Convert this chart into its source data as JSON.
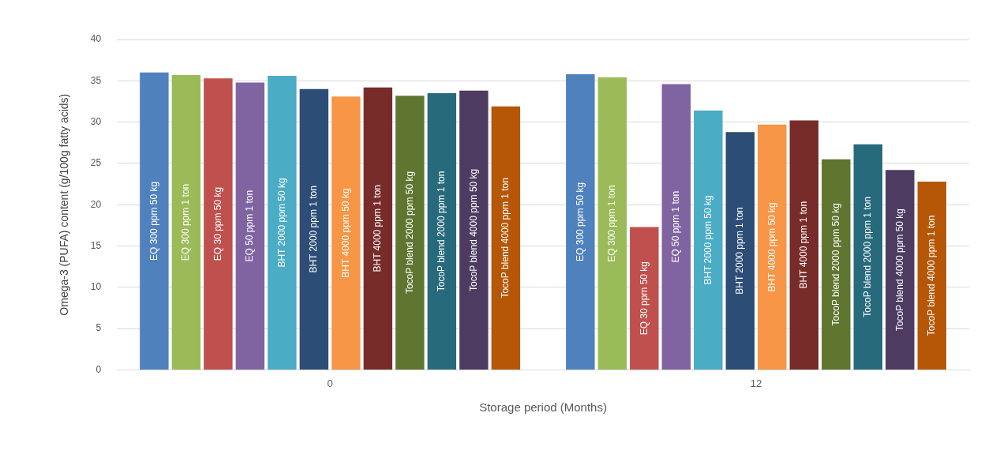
{
  "chart_data": {
    "type": "bar",
    "categories": [
      "0",
      "12"
    ],
    "xlabel": "Storage period (Months)",
    "ylabel": "Omega-3 (PUFA) content (g/100g fatty acids)",
    "ylim": [
      0,
      40
    ],
    "yticks": [
      0,
      5,
      10,
      15,
      20,
      25,
      30,
      35,
      40
    ],
    "grid": "y",
    "legend": false,
    "series": [
      {
        "name": "EQ 300 ppm 50 kg",
        "color": "#4f81bd",
        "values": [
          36.0,
          35.8
        ]
      },
      {
        "name": "EQ 300 ppm 1 ton",
        "color": "#9bbb59",
        "values": [
          35.7,
          35.4
        ]
      },
      {
        "name": "EQ 30 ppm 50 kg",
        "color": "#c0504d",
        "values": [
          35.3,
          17.3
        ]
      },
      {
        "name": "EQ 50 ppm 1 ton",
        "color": "#8064a2",
        "values": [
          34.8,
          34.6
        ]
      },
      {
        "name": "BHT 2000 ppm 50 kg",
        "color": "#4bacc6",
        "values": [
          35.6,
          31.4
        ]
      },
      {
        "name": "BHT 2000 ppm 1 ton",
        "color": "#2c4d75",
        "values": [
          34.0,
          28.8
        ]
      },
      {
        "name": "BHT 4000 ppm 50 kg",
        "color": "#f79646",
        "values": [
          33.1,
          29.7
        ]
      },
      {
        "name": "BHT 4000 ppm 1 ton",
        "color": "#772c2a",
        "values": [
          34.2,
          30.2
        ]
      },
      {
        "name": "TocoP blend 2000 ppm 50 kg",
        "color": "#5f7530",
        "values": [
          33.2,
          25.5
        ]
      },
      {
        "name": "TocoP blend 2000 ppm 1 ton",
        "color": "#276a7c",
        "values": [
          33.5,
          27.3
        ]
      },
      {
        "name": "TocoP blend 4000 ppm 50 kg",
        "color": "#4d3b62",
        "values": [
          33.8,
          24.2
        ]
      },
      {
        "name": "TocoP blend 4000 ppm 1 ton",
        "color": "#b65708",
        "values": [
          31.9,
          22.8
        ]
      }
    ]
  }
}
